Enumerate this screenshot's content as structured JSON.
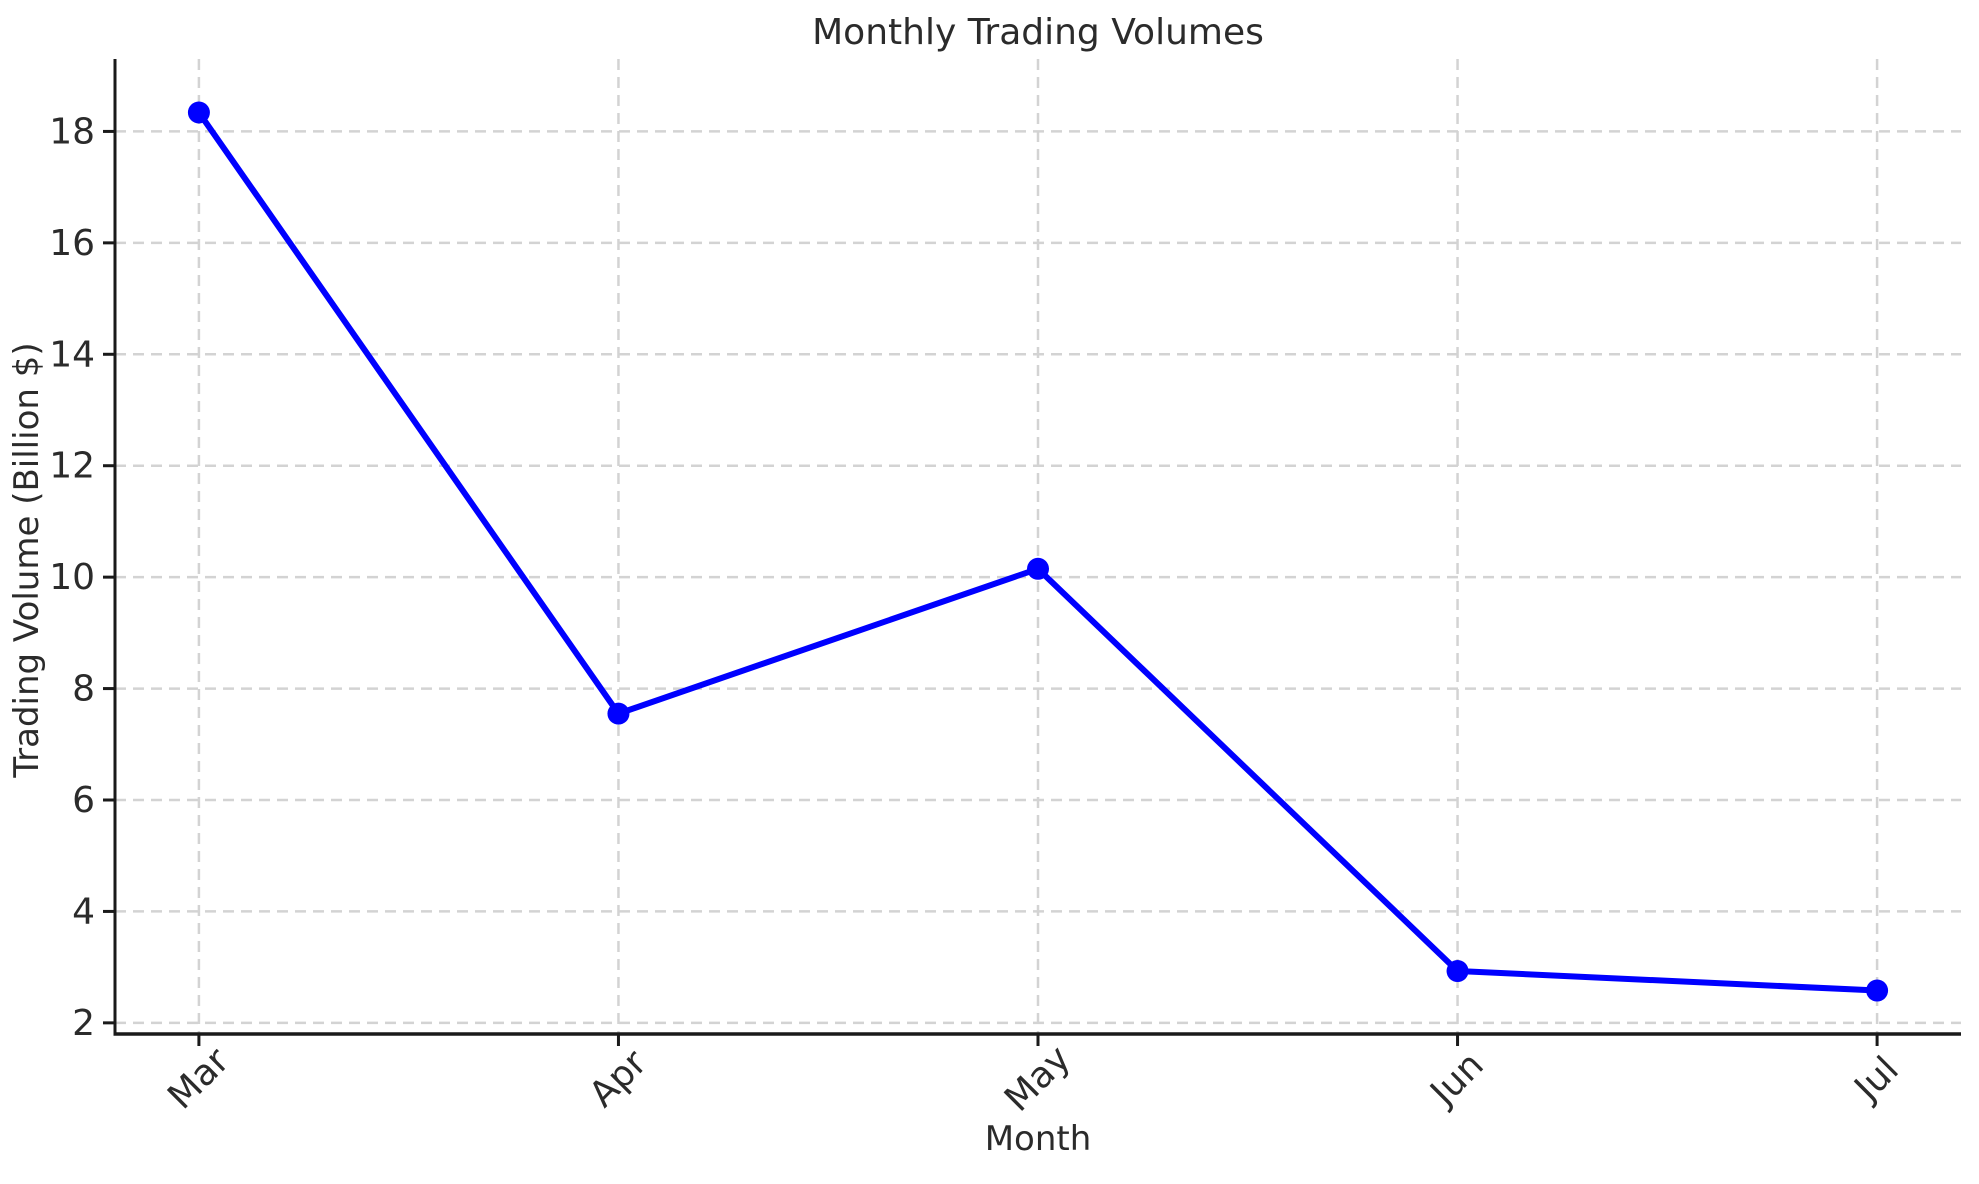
{
  "chart_data": {
    "type": "line",
    "title": "Monthly Trading Volumes",
    "xlabel": "Month",
    "ylabel": "Trading Volume (Billion $)",
    "categories": [
      "Mar",
      "Apr",
      "May",
      "Jun",
      "Jul"
    ],
    "series": [
      {
        "name": "Trading Volume",
        "values": [
          18.34,
          7.55,
          10.15,
          2.93,
          2.58
        ]
      }
    ],
    "yticks": [
      2,
      4,
      6,
      8,
      10,
      12,
      14,
      16,
      18
    ],
    "ylim": [
      1.8,
      19.3
    ],
    "xlim": [
      -0.2,
      4.2
    ],
    "grid": true,
    "grid_style": "dashed",
    "legend_position": "none",
    "line_color": "#0000ff",
    "marker": "circle",
    "grid_color": "#d3d3d3",
    "spine_color": "#1a1a1a",
    "text_color": "#2b2b2b",
    "background": "#ffffff"
  }
}
